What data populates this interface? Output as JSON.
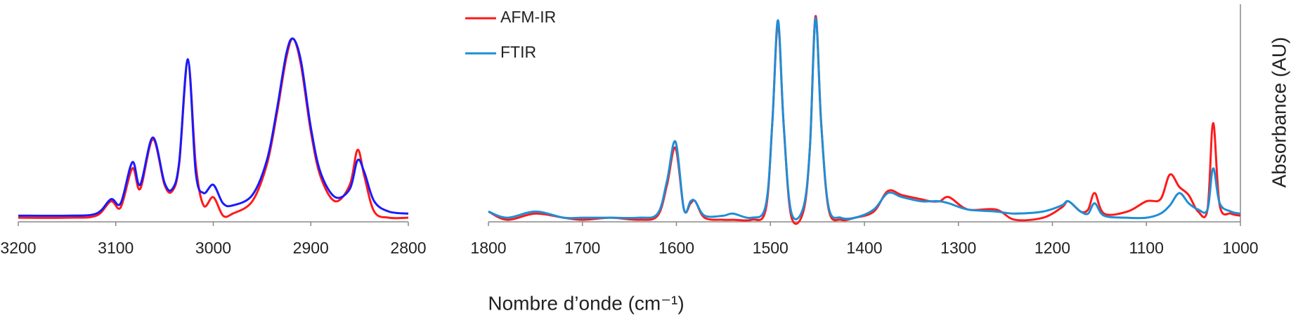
{
  "chart_data": [
    {
      "type": "line",
      "x": [
        3200,
        3150,
        3120,
        3105,
        3095,
        3083,
        3075,
        3062,
        3050,
        3042,
        3035,
        3026,
        3018,
        3010,
        3000,
        2990,
        2980,
        2960,
        2945,
        2935,
        2925,
        2918,
        2910,
        2900,
        2890,
        2875,
        2860,
        2852,
        2845,
        2835,
        2820,
        2800
      ],
      "series": [
        {
          "name": "AFM-IR",
          "color": "#ff1a1a",
          "values": [
            0.02,
            0.02,
            0.03,
            0.1,
            0.07,
            0.26,
            0.16,
            0.4,
            0.18,
            0.15,
            0.28,
            0.78,
            0.28,
            0.08,
            0.12,
            0.03,
            0.04,
            0.1,
            0.28,
            0.52,
            0.8,
            0.89,
            0.76,
            0.44,
            0.22,
            0.1,
            0.18,
            0.35,
            0.22,
            0.05,
            0.02,
            0.02
          ]
        },
        {
          "name": "FTIR",
          "color": "#1a1aff",
          "values": [
            0.03,
            0.03,
            0.04,
            0.11,
            0.09,
            0.29,
            0.18,
            0.41,
            0.19,
            0.16,
            0.29,
            0.79,
            0.24,
            0.14,
            0.18,
            0.09,
            0.08,
            0.13,
            0.3,
            0.54,
            0.82,
            0.89,
            0.78,
            0.46,
            0.24,
            0.12,
            0.16,
            0.3,
            0.24,
            0.1,
            0.05,
            0.04
          ]
        }
      ],
      "xlim": [
        3200,
        2800
      ],
      "xticks": [
        3200,
        3100,
        3000,
        2900,
        2800
      ],
      "ylim": [
        0,
        1
      ],
      "legend": false
    },
    {
      "type": "line",
      "x": [
        1800,
        1780,
        1750,
        1720,
        1700,
        1670,
        1640,
        1620,
        1610,
        1601,
        1592,
        1585,
        1580,
        1570,
        1550,
        1540,
        1520,
        1505,
        1498,
        1492,
        1486,
        1478,
        1465,
        1458,
        1452,
        1446,
        1438,
        1425,
        1410,
        1390,
        1375,
        1360,
        1340,
        1330,
        1320,
        1310,
        1290,
        1260,
        1240,
        1210,
        1190,
        1183,
        1170,
        1162,
        1155,
        1145,
        1120,
        1100,
        1085,
        1075,
        1065,
        1055,
        1045,
        1035,
        1029,
        1022,
        1010,
        1000
      ],
      "series": [
        {
          "name": "AFM-IR",
          "color": "#ff1a1a",
          "values": [
            0.05,
            0.01,
            0.04,
            0.02,
            0.01,
            0.02,
            0.01,
            0.03,
            0.18,
            0.36,
            0.06,
            0.09,
            0.1,
            0.02,
            0.01,
            0.01,
            0.01,
            0.06,
            0.48,
            0.96,
            0.48,
            0.03,
            0.05,
            0.36,
            1.0,
            0.48,
            0.06,
            0.01,
            0.02,
            0.05,
            0.15,
            0.13,
            0.11,
            0.1,
            0.1,
            0.12,
            0.06,
            0.06,
            0.01,
            0.02,
            0.07,
            0.1,
            0.05,
            0.06,
            0.14,
            0.04,
            0.05,
            0.1,
            0.11,
            0.23,
            0.17,
            0.13,
            0.05,
            0.06,
            0.48,
            0.08,
            0.04,
            0.03
          ]
        },
        {
          "name": "FTIR",
          "color": "#1f8ed6",
          "values": [
            0.05,
            0.02,
            0.05,
            0.02,
            0.02,
            0.02,
            0.02,
            0.04,
            0.2,
            0.39,
            0.06,
            0.1,
            0.1,
            0.03,
            0.03,
            0.04,
            0.02,
            0.08,
            0.48,
            0.98,
            0.48,
            0.05,
            0.07,
            0.36,
            0.99,
            0.48,
            0.07,
            0.02,
            0.02,
            0.06,
            0.14,
            0.12,
            0.1,
            0.1,
            0.1,
            0.09,
            0.06,
            0.05,
            0.04,
            0.05,
            0.08,
            0.1,
            0.05,
            0.04,
            0.09,
            0.03,
            0.02,
            0.02,
            0.04,
            0.08,
            0.14,
            0.09,
            0.06,
            0.06,
            0.26,
            0.09,
            0.05,
            0.04
          ]
        }
      ],
      "xlim": [
        1800,
        1000
      ],
      "xticks": [
        1800,
        1700,
        1600,
        1500,
        1400,
        1300,
        1200,
        1100,
        1000
      ],
      "ylim": [
        0,
        1
      ],
      "legend": true,
      "xlabel": "Nombre d’onde (cm⁻¹)",
      "ylabel": "Absorbance (AU)"
    }
  ]
}
